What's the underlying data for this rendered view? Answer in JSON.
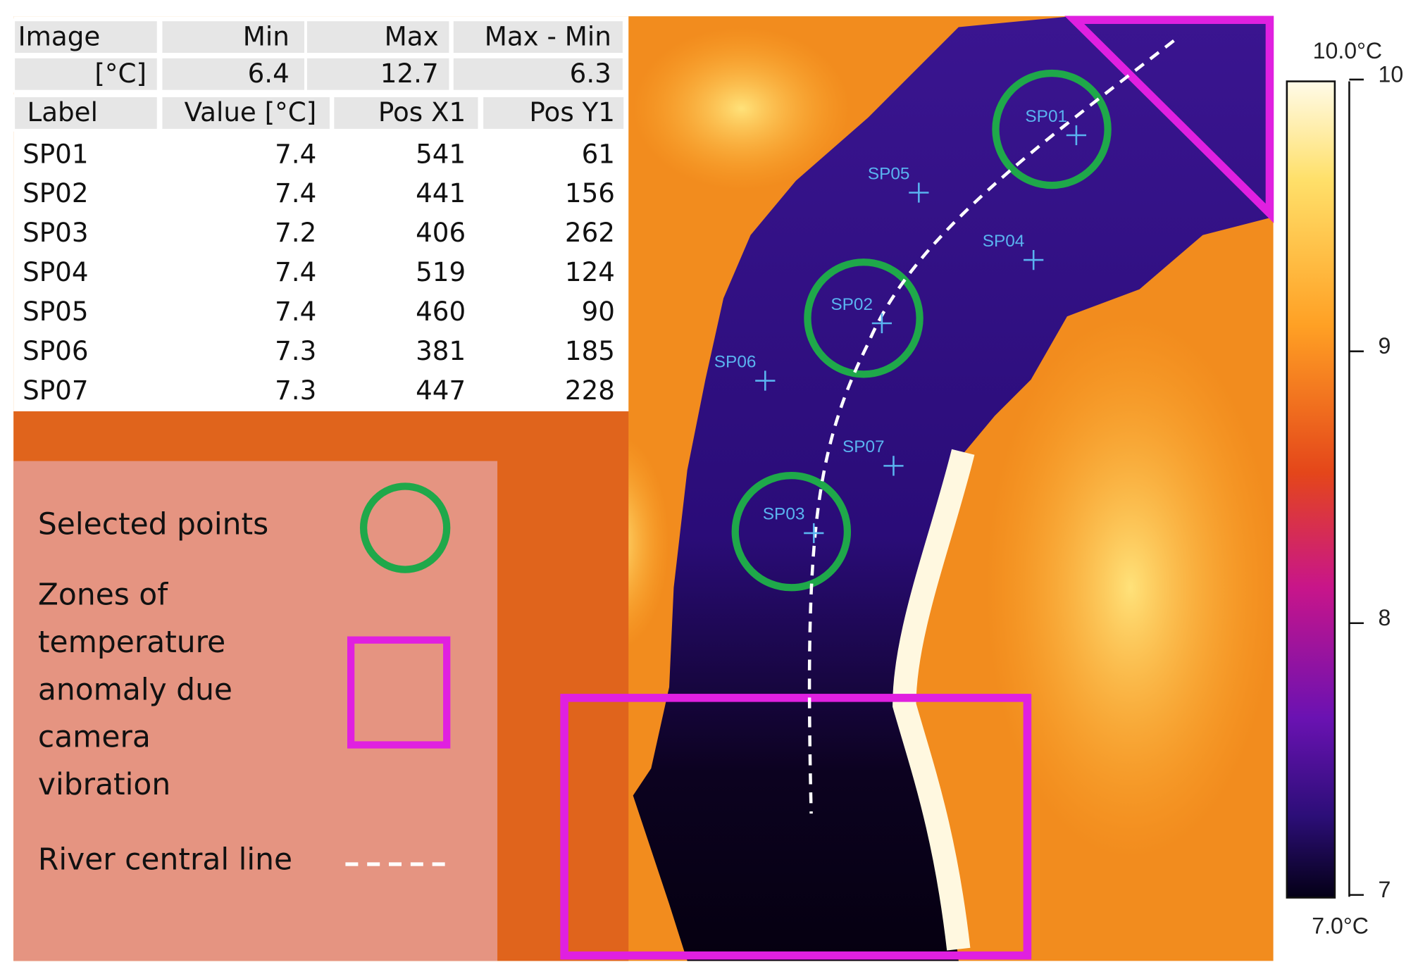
{
  "table": {
    "header": [
      [
        "Image",
        "Min",
        "Max",
        "Max - Min"
      ],
      [
        "[°C]",
        6.4,
        12.7,
        6.3
      ],
      [
        "Label",
        "Value [°C]",
        "Pos X1",
        "Pos Y1"
      ]
    ],
    "rows": [
      [
        "SP01",
        7.4,
        541,
        61
      ],
      [
        "SP02",
        7.4,
        441,
        156
      ],
      [
        "SP03",
        7.2,
        406,
        262
      ],
      [
        "SP04",
        7.4,
        519,
        124
      ],
      [
        "SP05",
        7.4,
        460,
        90
      ],
      [
        "SP06",
        7.3,
        381,
        185
      ],
      [
        "SP07",
        7.3,
        447,
        228
      ]
    ]
  },
  "legend": {
    "selected": "Selected points",
    "zones": [
      "Zones of",
      "temperature",
      "anomaly due",
      "camera",
      "vibration"
    ],
    "centerline": "River central line"
  },
  "colorbar": {
    "max_label": "10.0°C",
    "min_label": "7.0°C",
    "ticks": [
      10,
      9,
      8,
      7
    ]
  }
}
